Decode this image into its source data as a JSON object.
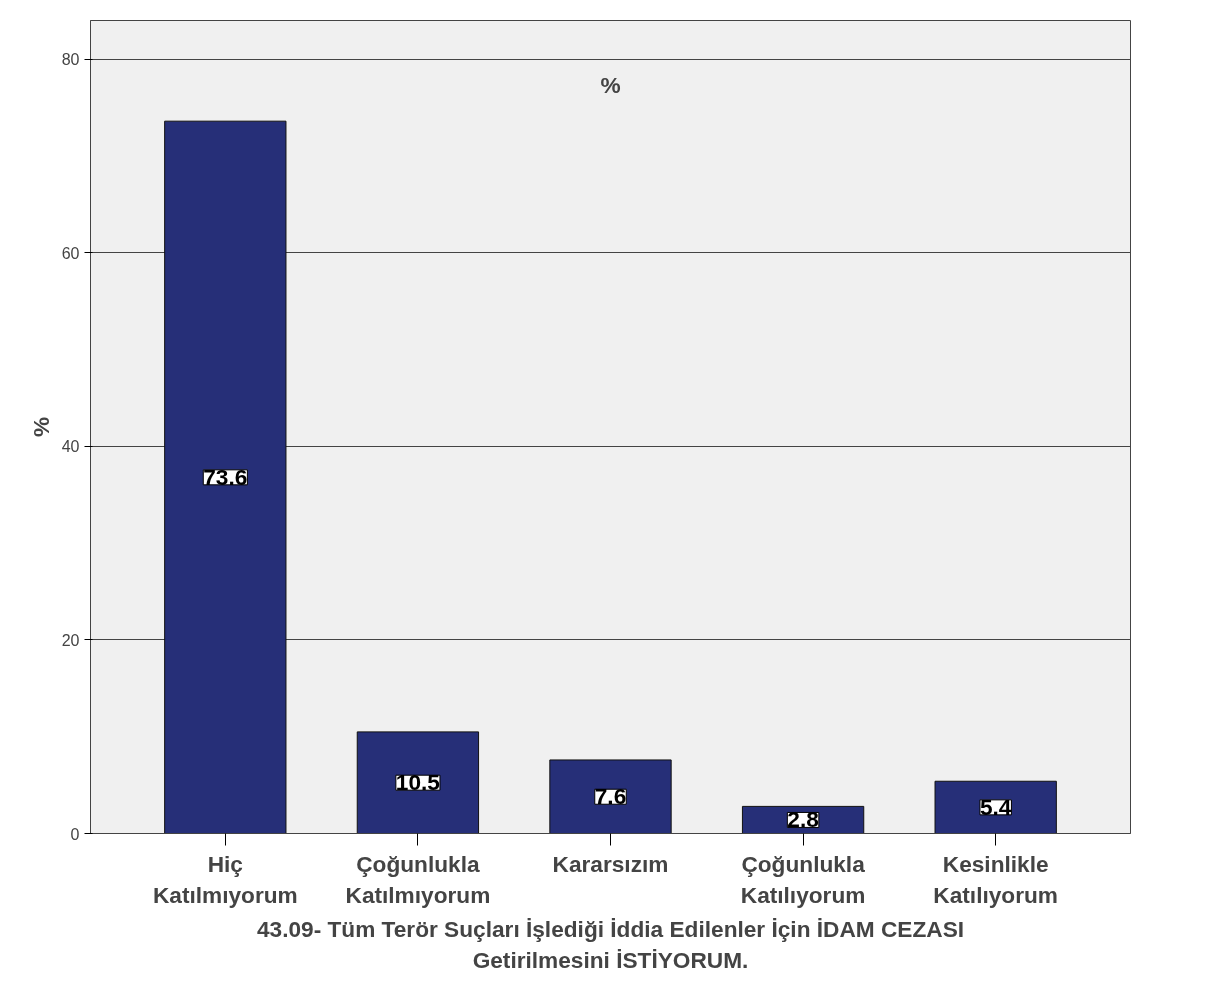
{
  "chart_data": {
    "type": "bar",
    "title": "%",
    "ylabel": "%",
    "xlabel": "43.09- Tüm Terör Suçları İşlediği İddia Edilenler İçin İDAM CEZASI Getirilmesini İSTİYORUM.",
    "categories": [
      "Hiç Katılmıyorum",
      "Çoğunlukla Katılmıyorum",
      "Kararsızım",
      "Çoğunlukla Katılıyorum",
      "Kesinlikle Katılıyorum"
    ],
    "values": [
      73.6,
      10.5,
      7.6,
      2.8,
      5.4
    ],
    "color": "#262f78",
    "ylim": [
      0,
      84
    ],
    "yticks": [
      0,
      20,
      40,
      60,
      80
    ],
    "grid": "y",
    "data_labels": true
  }
}
